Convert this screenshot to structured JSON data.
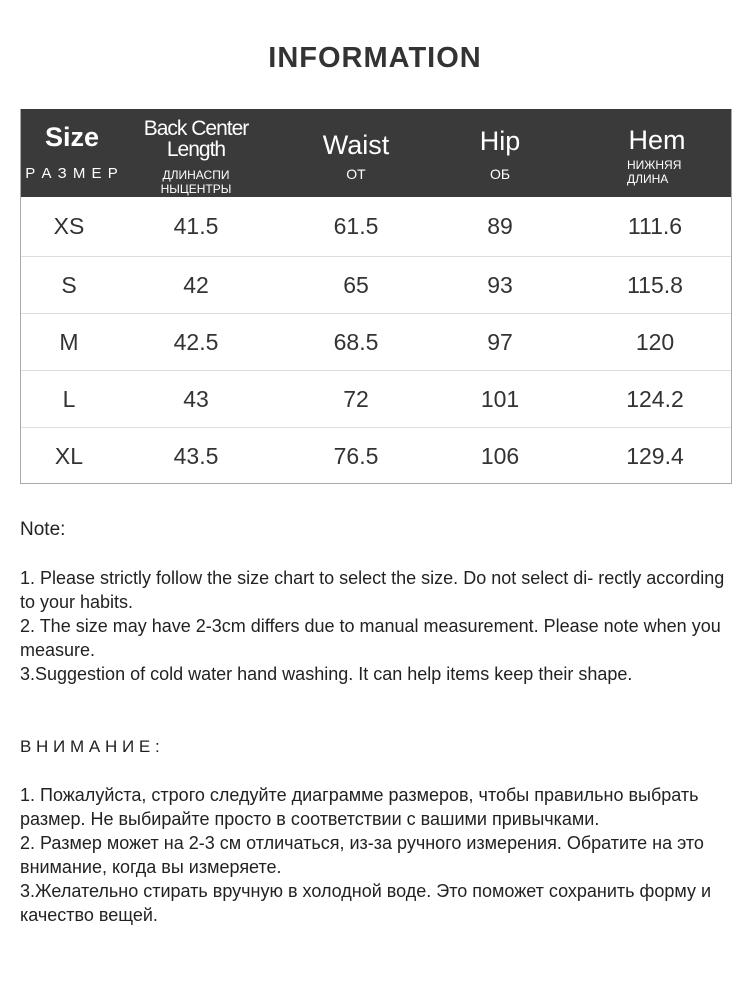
{
  "title": "INFORMATION",
  "table": {
    "headers": [
      {
        "en": "Size",
        "ru": "Р А З М Е Р"
      },
      {
        "en": "Back Center Length",
        "ru": "ДЛИНАСПИ НЫЦЕНТРЫ"
      },
      {
        "en": "Waist",
        "ru": "ОТ"
      },
      {
        "en": "Hip",
        "ru": "ОБ"
      },
      {
        "en": "Hem",
        "ru": "НИЖНЯЯ ДЛИНА"
      }
    ],
    "rows": [
      [
        "XS",
        "41.5",
        "61.5",
        "89",
        "111.6"
      ],
      [
        "S",
        "42",
        "65",
        "93",
        "115.8"
      ],
      [
        "M",
        "42.5",
        "68.5",
        "97",
        "120"
      ],
      [
        "L",
        "43",
        "72",
        "101",
        "124.2"
      ],
      [
        "XL",
        "43.5",
        "76.5",
        "106",
        "129.4"
      ]
    ]
  },
  "note": {
    "heading": "Note:",
    "items": [
      "1. Please strictly follow the size chart  to select the size. Do not select di- rectly according to your habits.",
      "2. The size may have 2-3cm differs due to manual measurement. Please note when you measure.",
      "3.Suggestion of cold water hand washing. It can help items keep their shape."
    ]
  },
  "note_ru": {
    "heading": "В Н И М А Н И Е :",
    "items": [
      "1. Пожалуйста, строго следуйте диаграмме размеров, чтобы правильно выбрать размер. Не выбирайте просто в соответствии с вашими привычками.",
      "2. Размер может на 2-3 см отличаться, из-за ручного измерения. Обратите на это внимание, когда вы измеряете.",
      "3.Желательно стирать вручную в холодной воде. Это поможет сохранить форму и качество вещей."
    ]
  }
}
